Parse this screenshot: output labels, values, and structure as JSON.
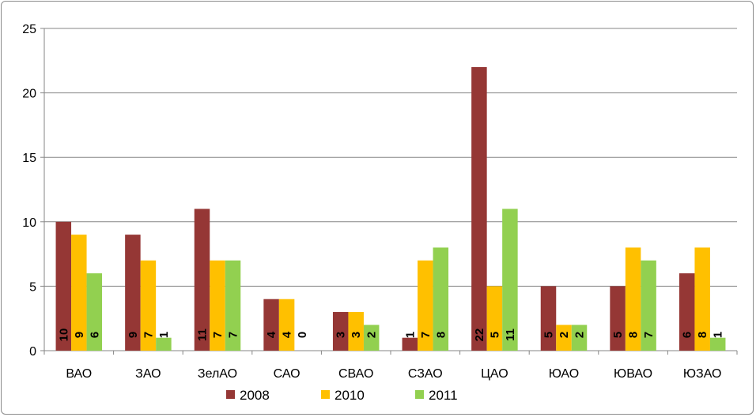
{
  "chart_data": {
    "type": "bar",
    "title": "",
    "xlabel": "",
    "ylabel": "",
    "ylim": [
      0,
      25
    ],
    "yticks": [
      0,
      5,
      10,
      15,
      20,
      25
    ],
    "grid": "horizontal",
    "legend_position": "bottom",
    "categories": [
      "ВАО",
      "ЗАО",
      "ЗелАО",
      "САО",
      "СВАО",
      "СЗАО",
      "ЦАО",
      "ЮАО",
      "ЮВАО",
      "ЮЗАО"
    ],
    "series": [
      {
        "name": "2008",
        "color": "#953735",
        "values": [
          10,
          9,
          11,
          4,
          3,
          1,
          22,
          5,
          5,
          6
        ]
      },
      {
        "name": "2010",
        "color": "#FFC000",
        "values": [
          9,
          7,
          7,
          4,
          3,
          7,
          5,
          2,
          8,
          8
        ]
      },
      {
        "name": "2011",
        "color": "#92D050",
        "values": [
          6,
          1,
          7,
          0,
          2,
          8,
          11,
          2,
          7,
          1
        ]
      }
    ]
  }
}
